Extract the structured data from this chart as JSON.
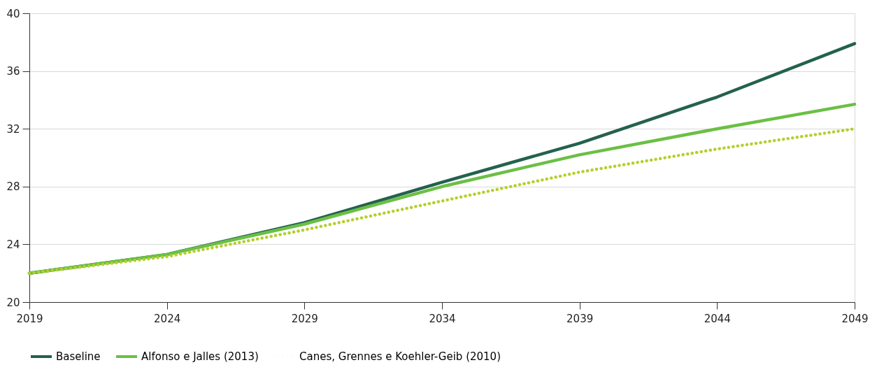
{
  "chart_data": {
    "type": "line",
    "x": [
      2019,
      2024,
      2029,
      2034,
      2039,
      2044,
      2049
    ],
    "series": [
      {
        "name": "Baseline",
        "color": "#24614f",
        "line_style": "solid",
        "values": [
          22.0,
          23.3,
          25.5,
          28.3,
          31.0,
          34.2,
          37.9
        ]
      },
      {
        "name": "Alfonso e Jalles (2013)",
        "color": "#6bbf45",
        "line_style": "solid",
        "values": [
          22.0,
          23.3,
          25.4,
          28.0,
          30.2,
          32.0,
          33.7
        ]
      },
      {
        "name": "Canes, Grennes e Koehler-Geib (2010)",
        "color": "#b5cf2a",
        "line_style": "dotted",
        "values": [
          22.0,
          23.15,
          25.0,
          27.0,
          29.0,
          30.6,
          32.0
        ]
      }
    ],
    "xlim": [
      2019,
      2049
    ],
    "xticks": [
      2019,
      2024,
      2029,
      2034,
      2039,
      2044,
      2049
    ],
    "ylim": [
      20,
      40
    ],
    "yticks": [
      20,
      24,
      28,
      32,
      36,
      40
    ],
    "grid": "y",
    "legend": "bottom"
  }
}
